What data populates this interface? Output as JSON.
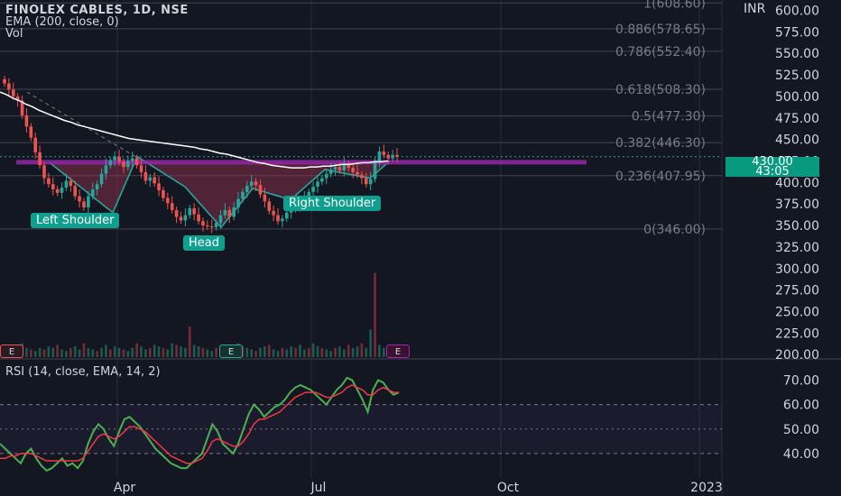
{
  "header": {
    "symbol_line": "FINOLEX CABLES, 1D, NSE",
    "ema_line": "EMA (200, close, 0)",
    "vol_line": "Vol"
  },
  "currency": "INR",
  "price_tag": {
    "price": "430.00",
    "countdown": "43:05"
  },
  "rsi": {
    "title": "RSI (14, close, EMA, 14, 2)",
    "axis_ticks": [
      "70.00",
      "60.00",
      "50.00",
      "40.00"
    ]
  },
  "pattern_labels": {
    "left_shoulder": "Left Shoulder",
    "head": "Head",
    "right_shoulder": "Right Shoulder"
  },
  "earnings_badges": [
    "E",
    "E",
    "E"
  ],
  "colors": {
    "background": "#131722",
    "up_candle": "#26a69a",
    "down_candle": "#ef5350",
    "ema_line": "#ffffff",
    "neckline": "#9c27b0",
    "rsi_line": "#4caf50",
    "rsi_signal": "#f23645",
    "pattern_fill": "#8e2f4a",
    "label_bg": "#0f9f8f"
  },
  "chart_data": [
    {
      "type": "candlestick",
      "title": "FINOLEX CABLES, 1D, NSE",
      "price_axis_ticks": [
        "600.00",
        "575.00",
        "550.00",
        "525.00",
        "500.00",
        "475.00",
        "450.00",
        "425.00",
        "400.00",
        "375.00",
        "350.00",
        "325.00",
        "300.00",
        "275.00",
        "250.00",
        "225.00",
        "200.00"
      ],
      "time_axis_labels": [
        "Apr",
        "Jul",
        "Oct",
        "2023"
      ],
      "ylim": [
        195,
        612
      ],
      "fib_levels": [
        {
          "label": "1(608.60)",
          "value": 608.6
        },
        {
          "label": "0.886(578.65)",
          "value": 578.65
        },
        {
          "label": "0.786(552.40)",
          "value": 552.4
        },
        {
          "label": "0.618(508.30)",
          "value": 508.3
        },
        {
          "label": "0.5(477.30)",
          "value": 477.3
        },
        {
          "label": "0.382(446.30)",
          "value": 446.3
        },
        {
          "label": "0.236(407.95)",
          "value": 407.95
        },
        {
          "label": "0(346.00)",
          "value": 346.0
        }
      ],
      "neckline": 423,
      "close": [
        515,
        508,
        500,
        495,
        478,
        465,
        452,
        435,
        420,
        405,
        398,
        392,
        388,
        394,
        402,
        396,
        384,
        378,
        371,
        384,
        392,
        398,
        410,
        420,
        426,
        430,
        424,
        418,
        425,
        428,
        420,
        412,
        402,
        406,
        399,
        391,
        382,
        376,
        368,
        360,
        356,
        362,
        370,
        363,
        355,
        350,
        349,
        348,
        353,
        362,
        368,
        360,
        371,
        381,
        389,
        396,
        401,
        397,
        386,
        378,
        367,
        362,
        355,
        358,
        365,
        369,
        373,
        377,
        382,
        389,
        395,
        401,
        405,
        410,
        415,
        418,
        414,
        421,
        417,
        412,
        409,
        405,
        398,
        404,
        425,
        436,
        432,
        428,
        432,
        430
      ],
      "ema200": [
        505,
        502,
        498,
        495,
        491,
        488,
        484,
        481,
        478,
        475,
        472,
        470,
        467,
        465,
        463,
        461,
        459,
        457,
        455,
        453,
        451,
        450,
        449,
        448,
        447,
        446,
        445,
        444,
        443,
        442,
        441,
        439,
        438,
        436,
        434,
        433,
        431,
        429,
        427,
        425,
        423,
        422,
        420,
        419,
        418,
        417,
        417,
        417,
        418,
        418,
        419,
        419,
        420,
        421,
        421,
        422,
        423,
        423,
        424,
        424,
        425
      ],
      "volume": [
        8,
        6,
        5,
        7,
        9,
        6,
        5,
        4,
        6,
        5,
        7,
        6,
        8,
        5,
        4,
        6,
        7,
        5,
        9,
        6,
        5,
        4,
        6,
        8,
        5,
        7,
        6,
        5,
        4,
        6,
        9,
        7,
        5,
        6,
        8,
        7,
        6,
        5,
        9,
        8,
        7,
        6,
        20,
        8,
        7,
        6,
        5,
        4,
        6,
        7,
        5,
        6,
        8,
        9,
        7,
        6,
        5,
        4,
        6,
        7,
        8,
        5,
        4,
        6,
        5,
        7,
        6,
        8,
        5,
        6,
        9,
        7,
        6,
        5,
        4,
        6,
        7,
        5,
        8,
        6,
        7,
        9,
        6,
        18,
        55,
        8,
        6,
        5,
        4,
        6
      ]
    },
    {
      "type": "line",
      "title": "RSI (14, close, EMA, 14, 2)",
      "ylim": [
        30,
        75
      ],
      "series": [
        {
          "values": [
            44,
            42,
            40,
            38,
            36,
            40,
            42,
            38,
            35,
            33,
            34,
            36,
            38,
            35,
            36,
            34,
            37,
            44,
            49,
            52,
            50,
            46,
            43,
            49,
            54,
            55,
            53,
            51,
            48,
            45,
            42,
            40,
            38,
            36,
            35,
            34,
            34,
            36,
            38,
            40,
            46,
            52,
            49,
            44,
            42,
            40,
            44,
            50,
            56,
            60,
            58,
            55,
            57,
            59,
            60,
            62,
            65,
            67,
            68,
            67,
            66,
            64,
            62,
            60,
            63,
            66,
            68,
            71,
            70,
            66,
            62,
            57,
            66,
            70,
            69,
            66,
            64,
            65
          ]
        },
        {
          "values": [
            38,
            38,
            39,
            39,
            40,
            40,
            40,
            39,
            38,
            37,
            37,
            37,
            37,
            37,
            37,
            37,
            38,
            41,
            44,
            47,
            48,
            47,
            46,
            47,
            49,
            51,
            51,
            50,
            49,
            47,
            45,
            43,
            41,
            39,
            38,
            37,
            36,
            36,
            37,
            38,
            41,
            45,
            46,
            45,
            44,
            43,
            43,
            45,
            48,
            52,
            54,
            54,
            55,
            56,
            57,
            59,
            61,
            63,
            64,
            65,
            65,
            65,
            64,
            63,
            63,
            64,
            65,
            67,
            68,
            67,
            66,
            64,
            64,
            66,
            67,
            66,
            65,
            65
          ]
        }
      ]
    }
  ]
}
